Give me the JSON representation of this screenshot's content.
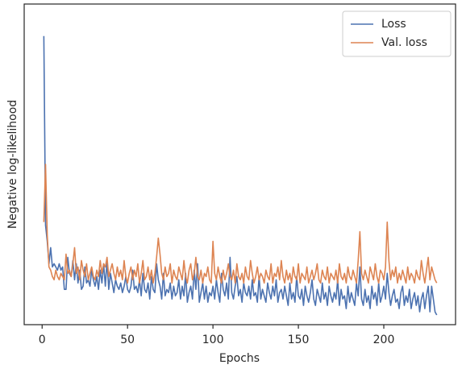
{
  "chart_data": {
    "type": "line",
    "x_label": "Epochs",
    "y_label": "Negative log-likelihood",
    "xlim": [
      -10.5,
      242
    ],
    "xticks": [
      0,
      50,
      100,
      150,
      200
    ],
    "ylim": [
      0,
      100
    ],
    "legend": "upper right",
    "x": [
      1,
      2,
      3,
      4,
      5,
      6,
      7,
      8,
      9,
      10,
      11,
      12,
      13,
      14,
      15,
      16,
      17,
      18,
      19,
      20,
      21,
      22,
      23,
      24,
      25,
      26,
      27,
      28,
      29,
      30,
      31,
      32,
      33,
      34,
      35,
      36,
      37,
      38,
      39,
      40,
      41,
      42,
      43,
      44,
      45,
      46,
      47,
      48,
      49,
      50,
      51,
      52,
      53,
      54,
      55,
      56,
      57,
      58,
      59,
      60,
      61,
      62,
      63,
      64,
      65,
      66,
      67,
      68,
      69,
      70,
      71,
      72,
      73,
      74,
      75,
      76,
      77,
      78,
      79,
      80,
      81,
      82,
      83,
      84,
      85,
      86,
      87,
      88,
      89,
      90,
      91,
      92,
      93,
      94,
      95,
      96,
      97,
      98,
      99,
      100,
      101,
      102,
      103,
      104,
      105,
      106,
      107,
      108,
      109,
      110,
      111,
      112,
      113,
      114,
      115,
      116,
      117,
      118,
      119,
      120,
      121,
      122,
      123,
      124,
      125,
      126,
      127,
      128,
      129,
      130,
      131,
      132,
      133,
      134,
      135,
      136,
      137,
      138,
      139,
      140,
      141,
      142,
      143,
      144,
      145,
      146,
      147,
      148,
      149,
      150,
      151,
      152,
      153,
      154,
      155,
      156,
      157,
      158,
      159,
      160,
      161,
      162,
      163,
      164,
      165,
      166,
      167,
      168,
      169,
      170,
      171,
      172,
      173,
      174,
      175,
      176,
      177,
      178,
      179,
      180,
      181,
      182,
      183,
      184,
      185,
      186,
      187,
      188,
      189,
      190,
      191,
      192,
      193,
      194,
      195,
      196,
      197,
      198,
      199,
      200,
      201,
      202,
      203,
      204,
      205,
      206,
      207,
      208,
      209,
      210,
      211,
      212,
      213,
      214,
      215,
      216,
      217,
      218,
      219,
      220,
      221,
      222,
      223,
      224,
      225,
      226,
      227,
      228,
      229,
      230,
      231
    ],
    "series": [
      {
        "name": "Loss",
        "color": "#4c72b0",
        "values": [
          90,
          31,
          26,
          19,
          24,
          18,
          19,
          18,
          17,
          19,
          17,
          18,
          11,
          11,
          21,
          16,
          15,
          20,
          14,
          19,
          13,
          17,
          11,
          12,
          18,
          13,
          14,
          12,
          17,
          14,
          12,
          15,
          11,
          17,
          13,
          19,
          12,
          20,
          11,
          16,
          13,
          10,
          14,
          12,
          11,
          13,
          10,
          12,
          15,
          11,
          10,
          12,
          17,
          11,
          12,
          10,
          14,
          9,
          16,
          11,
          10,
          13,
          8,
          15,
          11,
          10,
          19,
          14,
          12,
          8,
          16,
          9,
          11,
          10,
          13,
          8,
          12,
          9,
          10,
          14,
          8,
          12,
          9,
          16,
          7,
          10,
          12,
          8,
          17,
          11,
          19,
          7,
          10,
          13,
          8,
          12,
          7,
          10,
          9,
          12,
          8,
          14,
          10,
          7,
          16,
          11,
          9,
          13,
          8,
          21,
          10,
          8,
          12,
          15,
          9,
          11,
          7,
          13,
          10,
          9,
          12,
          8,
          14,
          9,
          10,
          7,
          15,
          8,
          11,
          9,
          7,
          13,
          10,
          8,
          12,
          9,
          14,
          7,
          10,
          11,
          8,
          12,
          9,
          6,
          13,
          8,
          10,
          7,
          15,
          9,
          8,
          11,
          6,
          12,
          9,
          7,
          10,
          14,
          8,
          6,
          11,
          9,
          7,
          13,
          8,
          10,
          6,
          12,
          9,
          7,
          10,
          8,
          14,
          6,
          11,
          8,
          9,
          5,
          12,
          7,
          10,
          8,
          6,
          13,
          9,
          18,
          8,
          6,
          11,
          7,
          9,
          5,
          12,
          8,
          10,
          6,
          13,
          7,
          9,
          12,
          8,
          16,
          10,
          6,
          9,
          11,
          7,
          8,
          5,
          10,
          12,
          6,
          9,
          7,
          11,
          5,
          8,
          10,
          6,
          9,
          4,
          8,
          10,
          5,
          9,
          12,
          4,
          12,
          8,
          4,
          3
        ]
      },
      {
        "name": "Val. loss",
        "color": "#dd8452",
        "values": [
          32,
          50,
          28,
          18,
          17,
          15,
          14,
          17,
          15,
          14,
          16,
          15,
          14,
          22,
          16,
          17,
          15,
          19,
          24,
          16,
          18,
          14,
          20,
          17,
          15,
          19,
          14,
          16,
          18,
          15,
          14,
          17,
          15,
          20,
          16,
          19,
          18,
          21,
          15,
          17,
          19,
          16,
          14,
          18,
          15,
          17,
          14,
          20,
          15,
          13,
          16,
          18,
          14,
          17,
          15,
          19,
          13,
          16,
          20,
          14,
          15,
          18,
          14,
          17,
          13,
          16,
          21,
          27,
          22,
          16,
          14,
          18,
          15,
          16,
          19,
          13,
          17,
          15,
          14,
          18,
          16,
          14,
          20,
          15,
          13,
          17,
          19,
          14,
          16,
          21,
          15,
          14,
          17,
          13,
          16,
          15,
          18,
          14,
          13,
          26,
          16,
          14,
          18,
          15,
          13,
          17,
          14,
          16,
          19,
          15,
          14,
          17,
          13,
          19,
          15,
          14,
          16,
          13,
          18,
          15,
          14,
          20,
          16,
          13,
          15,
          18,
          14,
          16,
          15,
          13,
          17,
          15,
          14,
          19,
          13,
          16,
          15,
          18,
          14,
          20,
          15,
          13,
          17,
          14,
          16,
          13,
          18,
          15,
          14,
          19,
          13,
          16,
          15,
          14,
          18,
          13,
          15,
          17,
          14,
          16,
          19,
          14,
          13,
          17,
          15,
          14,
          18,
          13,
          16,
          15,
          14,
          17,
          13,
          19,
          15,
          14,
          16,
          13,
          18,
          15,
          14,
          17,
          15,
          13,
          20,
          29,
          16,
          14,
          17,
          15,
          13,
          18,
          16,
          14,
          19,
          15,
          13,
          17,
          16,
          14,
          18,
          32,
          20,
          14,
          17,
          15,
          18,
          13,
          16,
          14,
          17,
          15,
          13,
          18,
          14,
          16,
          15,
          13,
          17,
          15,
          14,
          20,
          16,
          13,
          17,
          21,
          14,
          18,
          16,
          14,
          13
        ]
      }
    ]
  }
}
